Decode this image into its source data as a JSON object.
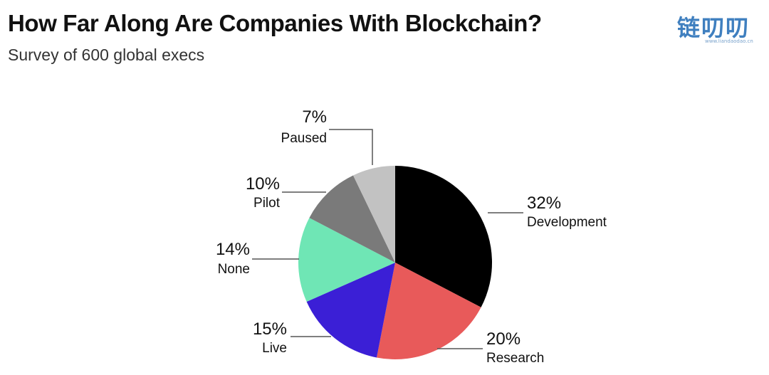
{
  "header": {
    "title": "How Far Along Are Companies With Blockchain?",
    "subtitle": "Survey of 600 global execs"
  },
  "watermark": {
    "text": "链叨叨",
    "subtext": "www.liandaodao.cn"
  },
  "chart_data": {
    "type": "pie",
    "title": "How Far Along Are Companies With Blockchain?",
    "subtitle": "Survey of 600 global execs",
    "unit": "%",
    "start": "12 o'clock",
    "direction": "clockwise",
    "slices": [
      {
        "label": "Development",
        "value": 32,
        "display": "32%",
        "color": "#000000"
      },
      {
        "label": "Research",
        "value": 20,
        "display": "20%",
        "color": "#e85a5a"
      },
      {
        "label": "Live",
        "value": 15,
        "display": "15%",
        "color": "#3b1fd6"
      },
      {
        "label": "None",
        "value": 14,
        "display": "14%",
        "color": "#6fe6b5"
      },
      {
        "label": "Pilot",
        "value": 10,
        "display": "10%",
        "color": "#7a7a7a"
      },
      {
        "label": "Paused",
        "value": 7,
        "display": "7%",
        "color": "#c2c2c2"
      }
    ]
  }
}
